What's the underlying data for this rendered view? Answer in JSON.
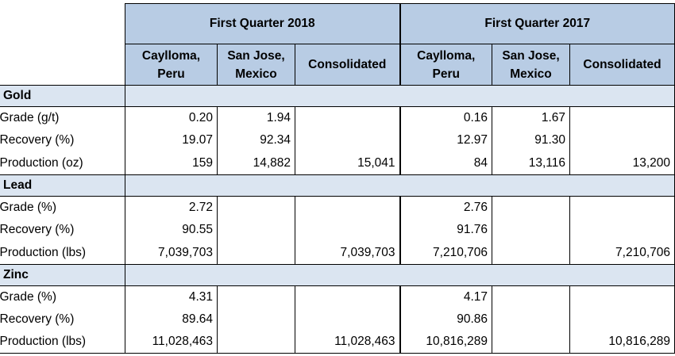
{
  "header": {
    "period1": "First Quarter 2018",
    "period2": "First Quarter 2017",
    "columns": [
      "Caylloma, Peru",
      "San Jose, Mexico",
      "Consolidated",
      "Caylloma, Peru",
      "San Jose, Mexico",
      "Consolidated"
    ]
  },
  "sections": [
    {
      "name": "Gold",
      "rows": [
        {
          "label": "Grade (g/t)",
          "values": [
            "0.20",
            "1.94",
            "",
            "0.16",
            "1.67",
            ""
          ]
        },
        {
          "label": "Recovery (%)",
          "values": [
            "19.07",
            "92.34",
            "",
            "12.97",
            "91.30",
            ""
          ]
        },
        {
          "label": "Production (oz)",
          "values": [
            "159",
            "14,882",
            "15,041",
            "84",
            "13,116",
            "13,200"
          ]
        }
      ]
    },
    {
      "name": "Lead",
      "rows": [
        {
          "label": "Grade (%)",
          "values": [
            "2.72",
            "",
            "",
            "2.76",
            "",
            ""
          ]
        },
        {
          "label": "Recovery (%)",
          "values": [
            "90.55",
            "",
            "",
            "91.76",
            "",
            ""
          ]
        },
        {
          "label": "Production (lbs)",
          "values": [
            "7,039,703",
            "",
            "7,039,703",
            "7,210,706",
            "",
            "7,210,706"
          ]
        }
      ]
    },
    {
      "name": "Zinc",
      "rows": [
        {
          "label": "Grade (%)",
          "values": [
            "4.31",
            "",
            "",
            "4.17",
            "",
            ""
          ]
        },
        {
          "label": "Recovery (%)",
          "values": [
            "89.64",
            "",
            "",
            "90.86",
            "",
            ""
          ]
        },
        {
          "label": "Production (lbs)",
          "values": [
            "11,028,463",
            "",
            "11,028,463",
            "10,816,289",
            "",
            "10,816,289"
          ]
        }
      ]
    }
  ]
}
